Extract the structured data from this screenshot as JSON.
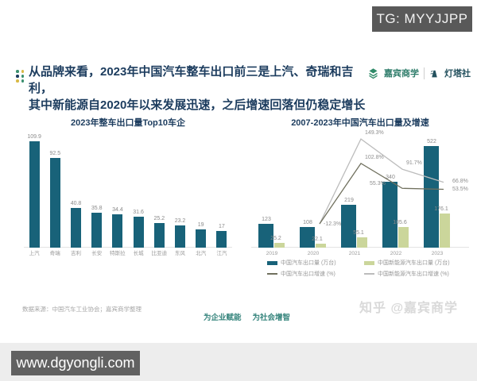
{
  "overlays": {
    "tg_badge": "TG: MYYJJPP",
    "url_badge": "www.dgyongli.com",
    "watermark": "知乎 @嘉宾商学"
  },
  "header": {
    "headline_line1": "从品牌来看，2023年中国汽车整车出口前三是上汽、奇瑞和吉利，",
    "headline_line2": "其中新能源自2020年以来发展迅速，之后增速回落但仍稳定增长",
    "brand_left": "嘉宾商学",
    "brand_right": "灯塔社"
  },
  "footer": {
    "source_note": "数据来源：中国汽车工业协会；嘉宾商学整理",
    "slogan_left": "为企业赋能",
    "slogan_right": "为社会增智"
  },
  "colors": {
    "bar_teal": "#186279",
    "bar_green": "#cbd69b",
    "line_dark": "#70705e",
    "line_gray": "#bcbcbc",
    "headline": "#1c3c5e",
    "accent_teal": "#35847c"
  },
  "chart_data": [
    {
      "type": "bar",
      "title": "2023年整车出口量Top10车企",
      "categories": [
        "上汽",
        "奇瑞",
        "吉利",
        "长安",
        "特斯拉",
        "长城",
        "比亚迪",
        "东风",
        "北汽",
        "江汽"
      ],
      "values": [
        109.9,
        92.5,
        40.8,
        35.8,
        34.4,
        31.6,
        25.2,
        23.2,
        19,
        17
      ],
      "ylim": [
        0,
        120
      ],
      "grid": false,
      "bar_color": "#186279"
    },
    {
      "type": "combo",
      "title": "2007-2023年中国汽车出口量及增速",
      "categories": [
        "2019",
        "2020",
        "2021",
        "2022",
        "2023"
      ],
      "legend_position": "bottom",
      "grid": false,
      "series": [
        {
          "name": "中国汽车出口量 (万台)",
          "type": "bar",
          "color": "#186279",
          "values": [
            123,
            108,
            219,
            340,
            522
          ]
        },
        {
          "name": "中国新能源汽车出口量 (万台)",
          "type": "bar",
          "color": "#cbd69b",
          "values": [
            25.2,
            22.1,
            55.1,
            105.6,
            176.1
          ]
        },
        {
          "name": "中国汽车出口增速 (%)",
          "type": "line",
          "color": "#70705e",
          "values": [
            null,
            -12.3,
            102.8,
            55.3,
            53.5
          ],
          "point_labels": [
            null,
            "-12.3%",
            "102.8%",
            "55.3%",
            "53.5%"
          ]
        },
        {
          "name": "中国新能源汽车出口增速 (%)",
          "type": "line",
          "color": "#bcbcbc",
          "values": [
            null,
            -12.3,
            149.3,
            91.7,
            66.8
          ],
          "point_labels": [
            null,
            null,
            "149.3%",
            "91.7%",
            "66.8%"
          ]
        }
      ]
    }
  ]
}
